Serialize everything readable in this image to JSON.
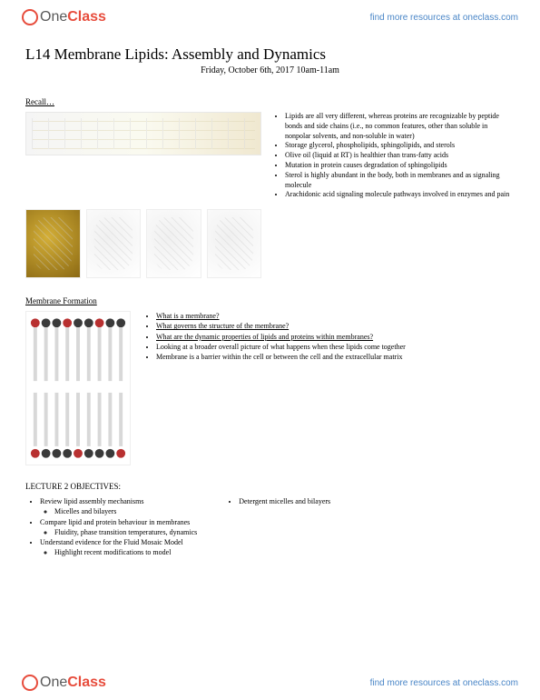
{
  "brand": {
    "name_prefix": "One",
    "name_bold": "Class",
    "link_text": "find more resources at oneclass.com"
  },
  "title": "L14 Membrane Lipids: Assembly and Dynamics",
  "date": "Friday, October 6th, 2017 10am-11am",
  "recall": {
    "heading": "Recall…",
    "bullets": [
      "Lipids are all very different, whereas proteins are recognizable by peptide bonds and side chains (i.e., no common features, other than soluble in nonpolar solvents, and non-soluble in water)",
      "Storage glycerol, phospholipids, sphingolipids, and sterols",
      "Olive oil (liquid at RT) is healthier than trans-fatty acids",
      "Mutation in protein causes degradation of sphingolipids",
      "Sterol is highly abundant in the body, both in membranes and as signaling molecule",
      "Arachidonic acid signaling molecule pathways involved in enzymes and pain"
    ]
  },
  "formation": {
    "heading": "Membrane Formation",
    "bullets": [
      {
        "text": "What is a membrane?",
        "underline": true
      },
      {
        "text": "What governs the structure of the membrane?",
        "underline": true
      },
      {
        "text": "What are the dynamic properties of lipids and proteins within membranes?",
        "underline": true
      },
      {
        "text": "Looking at a broader overall picture of what happens when these lipids come together",
        "underline": false
      },
      {
        "text": "Membrane is a barrier within the cell or between the cell and the extracellular matrix",
        "underline": false
      }
    ]
  },
  "objectives": {
    "heading": "LECTURE 2 OBJECTIVES:",
    "left": [
      {
        "text": "Review lipid assembly mechanisms",
        "sub": [
          "Micelles and bilayers"
        ]
      },
      {
        "text": "Compare lipid and protein behaviour in membranes",
        "sub": [
          "Fluidity, phase transition temperatures, dynamics"
        ]
      },
      {
        "text": "Understand evidence for the Fluid Mosaic Model",
        "sub": [
          "Highlight recent modifications to model"
        ]
      }
    ],
    "right": [
      {
        "text": "Detergent micelles and bilayers",
        "sub": []
      }
    ]
  },
  "colors": {
    "accent": "#e74c3c",
    "link": "#4a86c7",
    "head_red": "#b83030",
    "head_dark": "#3a3a3a",
    "chain": "#d8d8d8"
  }
}
